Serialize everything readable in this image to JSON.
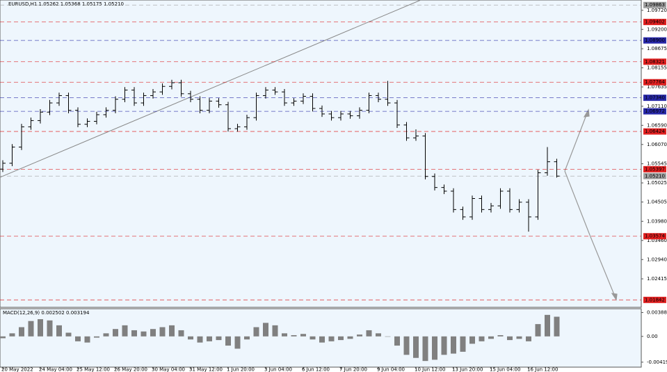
{
  "chart_data": {
    "type": "candlestick",
    "title": "EURUSD,H1  1.05262 1.05368 1.05175 1.05210",
    "categories": [
      "20 May 2022",
      null,
      null,
      null,
      "24 May 04:00",
      null,
      null,
      null,
      "25 May 12:00",
      null,
      null,
      null,
      "26 May 20:00",
      null,
      null,
      null,
      "30 May 04:00",
      null,
      null,
      null,
      "31 May 12:00",
      null,
      null,
      null,
      "1 Jun 20:00",
      null,
      null,
      null,
      "3 Jun 04:00",
      null,
      null,
      null,
      "6 Jun 12:00",
      null,
      null,
      null,
      "7 Jun 20:00",
      null,
      null,
      null,
      "9 Jun 04:00",
      null,
      null,
      null,
      "10 Jun 12:00",
      null,
      null,
      null,
      "13 Jun 20:00",
      null,
      null,
      null,
      "15 Jun 04:00",
      null,
      null,
      null,
      "16 Jun 12:00",
      null,
      null,
      null
    ],
    "open": [
      1.054,
      1.0556,
      1.06,
      1.0655,
      1.0672,
      1.0695,
      1.072,
      1.074,
      1.07,
      1.0662,
      1.067,
      1.0688,
      1.07,
      1.073,
      1.0755,
      1.072,
      1.074,
      1.075,
      1.0765,
      1.0775,
      1.0745,
      1.073,
      1.07,
      1.0725,
      1.0715,
      1.065,
      1.0655,
      1.068,
      1.074,
      1.0755,
      1.075,
      1.072,
      1.0725,
      1.0738,
      1.0705,
      1.069,
      1.068,
      1.069,
      1.0685,
      1.07,
      1.074,
      1.073,
      1.072,
      1.066,
      1.0625,
      1.063,
      1.052,
      1.049,
      1.048,
      1.043,
      1.041,
      1.046,
      1.043,
      1.044,
      1.048,
      1.043,
      1.045,
      1.041,
      1.053,
      1.056
    ],
    "high": [
      1.0564,
      1.0608,
      1.0663,
      1.068,
      1.0703,
      1.0728,
      1.0748,
      1.0748,
      1.0708,
      1.0678,
      1.0696,
      1.0708,
      1.0738,
      1.0763,
      1.0763,
      1.0748,
      1.0758,
      1.0773,
      1.0783,
      1.0783,
      1.0753,
      1.0738,
      1.0733,
      1.0733,
      1.0723,
      1.0663,
      1.0688,
      1.0748,
      1.0763,
      1.0763,
      1.0758,
      1.0733,
      1.0746,
      1.0746,
      1.0713,
      1.0698,
      1.0698,
      1.0698,
      1.0708,
      1.0748,
      1.0748,
      1.078,
      1.0728,
      1.0668,
      1.0648,
      1.0638,
      1.0528,
      1.0498,
      1.0488,
      1.0438,
      1.0468,
      1.0468,
      1.0448,
      1.0488,
      1.0488,
      1.0458,
      1.0458,
      1.0538,
      1.06,
      1.0568
    ],
    "low": [
      1.0532,
      1.0548,
      1.0592,
      1.0647,
      1.0664,
      1.0687,
      1.0712,
      1.0692,
      1.0654,
      1.0654,
      1.0662,
      1.068,
      1.0692,
      1.0722,
      1.0712,
      1.0712,
      1.0732,
      1.0742,
      1.0757,
      1.0737,
      1.0722,
      1.0692,
      1.0692,
      1.0707,
      1.0642,
      1.0642,
      1.0647,
      1.0672,
      1.0732,
      1.0742,
      1.0712,
      1.0712,
      1.0717,
      1.0697,
      1.0682,
      1.0672,
      1.0672,
      1.0677,
      1.0677,
      1.0692,
      1.0722,
      1.0712,
      1.0652,
      1.0617,
      1.0617,
      1.0512,
      1.0482,
      1.0472,
      1.0422,
      1.0402,
      1.0402,
      1.0422,
      1.0422,
      1.0432,
      1.0422,
      1.0422,
      1.037,
      1.0402,
      1.0522,
      1.0517
    ],
    "close": [
      1.0556,
      1.06,
      1.0655,
      1.0672,
      1.0695,
      1.072,
      1.074,
      1.07,
      1.0662,
      1.067,
      1.0688,
      1.07,
      1.073,
      1.0755,
      1.072,
      1.074,
      1.075,
      1.0765,
      1.0775,
      1.0745,
      1.073,
      1.07,
      1.0725,
      1.0715,
      1.065,
      1.0655,
      1.068,
      1.074,
      1.0755,
      1.075,
      1.072,
      1.0725,
      1.0738,
      1.0705,
      1.069,
      1.068,
      1.069,
      1.0685,
      1.07,
      1.074,
      1.073,
      1.072,
      1.066,
      1.0625,
      1.063,
      1.052,
      1.049,
      1.048,
      1.043,
      1.041,
      1.046,
      1.043,
      1.044,
      1.048,
      1.043,
      1.045,
      1.041,
      1.053,
      1.056,
      1.0521
    ],
    "color": "#000000",
    "ylim": [
      1.0164,
      1.1
    ],
    "yticks": [
      {
        "value": 1.0972,
        "label": "1.09720"
      },
      {
        "value": 1.092,
        "label": "1.09200"
      },
      1.08675,
      1.08155,
      1.07635,
      {
        "value": 1.0711,
        "label": "1.07110"
      },
      {
        "value": 1.0659,
        "label": "1.06590"
      },
      {
        "value": 1.0607,
        "label": "1.06070"
      },
      1.05545,
      1.05025,
      1.04505,
      {
        "value": 1.0398,
        "label": "1.03980"
      },
      {
        "value": 1.0346,
        "label": "1.03460"
      },
      {
        "value": 1.0294,
        "label": "1.02940"
      },
      1.02415
    ],
    "levels": [
      {
        "value": 1.09863,
        "label": "1.09863",
        "color": "#9e9e9e"
      },
      {
        "value": 1.09402,
        "label": "1.09402",
        "color": "#e02020"
      },
      {
        "value": 1.089,
        "label": "1.08900",
        "color": "#2828a8"
      },
      {
        "value": 1.08321,
        "label": "1.08321",
        "color": "#e02020"
      },
      {
        "value": 1.07764,
        "label": "1.07764",
        "color": "#e02020"
      },
      {
        "value": 1.0734,
        "label": "1.07340",
        "color": "#2828a8"
      },
      {
        "value": 1.06972,
        "label": "1.06972",
        "color": "#2828a8"
      },
      {
        "value": 1.06424,
        "label": "1.06424",
        "color": "#e02020"
      },
      {
        "value": 1.05397,
        "label": "1.05397",
        "color": "#e02020"
      },
      {
        "value": 1.0521,
        "label": "1.05210",
        "color": "#a0a0a0"
      },
      {
        "value": 1.03574,
        "label": "1.03574",
        "color": "#e02020"
      },
      {
        "value": 1.01842,
        "label": "1.01842",
        "color": "#e02020"
      }
    ],
    "macd": {
      "title": "MACD(12,26,9) 0.002502 0.003194",
      "color": "#808080",
      "values": [
        -0.0003,
        0.0005,
        0.0015,
        0.0025,
        0.0028,
        0.0026,
        0.0018,
        0.0006,
        -0.0008,
        -0.001,
        -0.0002,
        0.0005,
        0.0012,
        0.0018,
        0.001,
        0.0008,
        0.0012,
        0.0015,
        0.0018,
        0.001,
        -0.0005,
        -0.001,
        -0.0008,
        -0.0006,
        -0.0015,
        -0.002,
        -0.0005,
        0.0015,
        0.0022,
        0.0018,
        0.0005,
        0.0002,
        0.0004,
        -0.0005,
        -0.001,
        -0.0008,
        -0.0006,
        -0.0004,
        0.0003,
        0.001,
        0.0005,
        0.0,
        -0.0015,
        -0.003,
        -0.0035,
        -0.004,
        -0.0038,
        -0.003,
        -0.0028,
        -0.0025,
        -0.0012,
        -0.0008,
        -0.0004,
        0.0002,
        -0.0006,
        -0.0004,
        -0.0008,
        0.002,
        0.0035,
        0.0032
      ],
      "ylim": [
        -0.005,
        0.0045
      ],
      "yticks": [
        0.003884,
        {
          "value": 0,
          "label": "0.00"
        },
        -0.004191
      ]
    }
  }
}
